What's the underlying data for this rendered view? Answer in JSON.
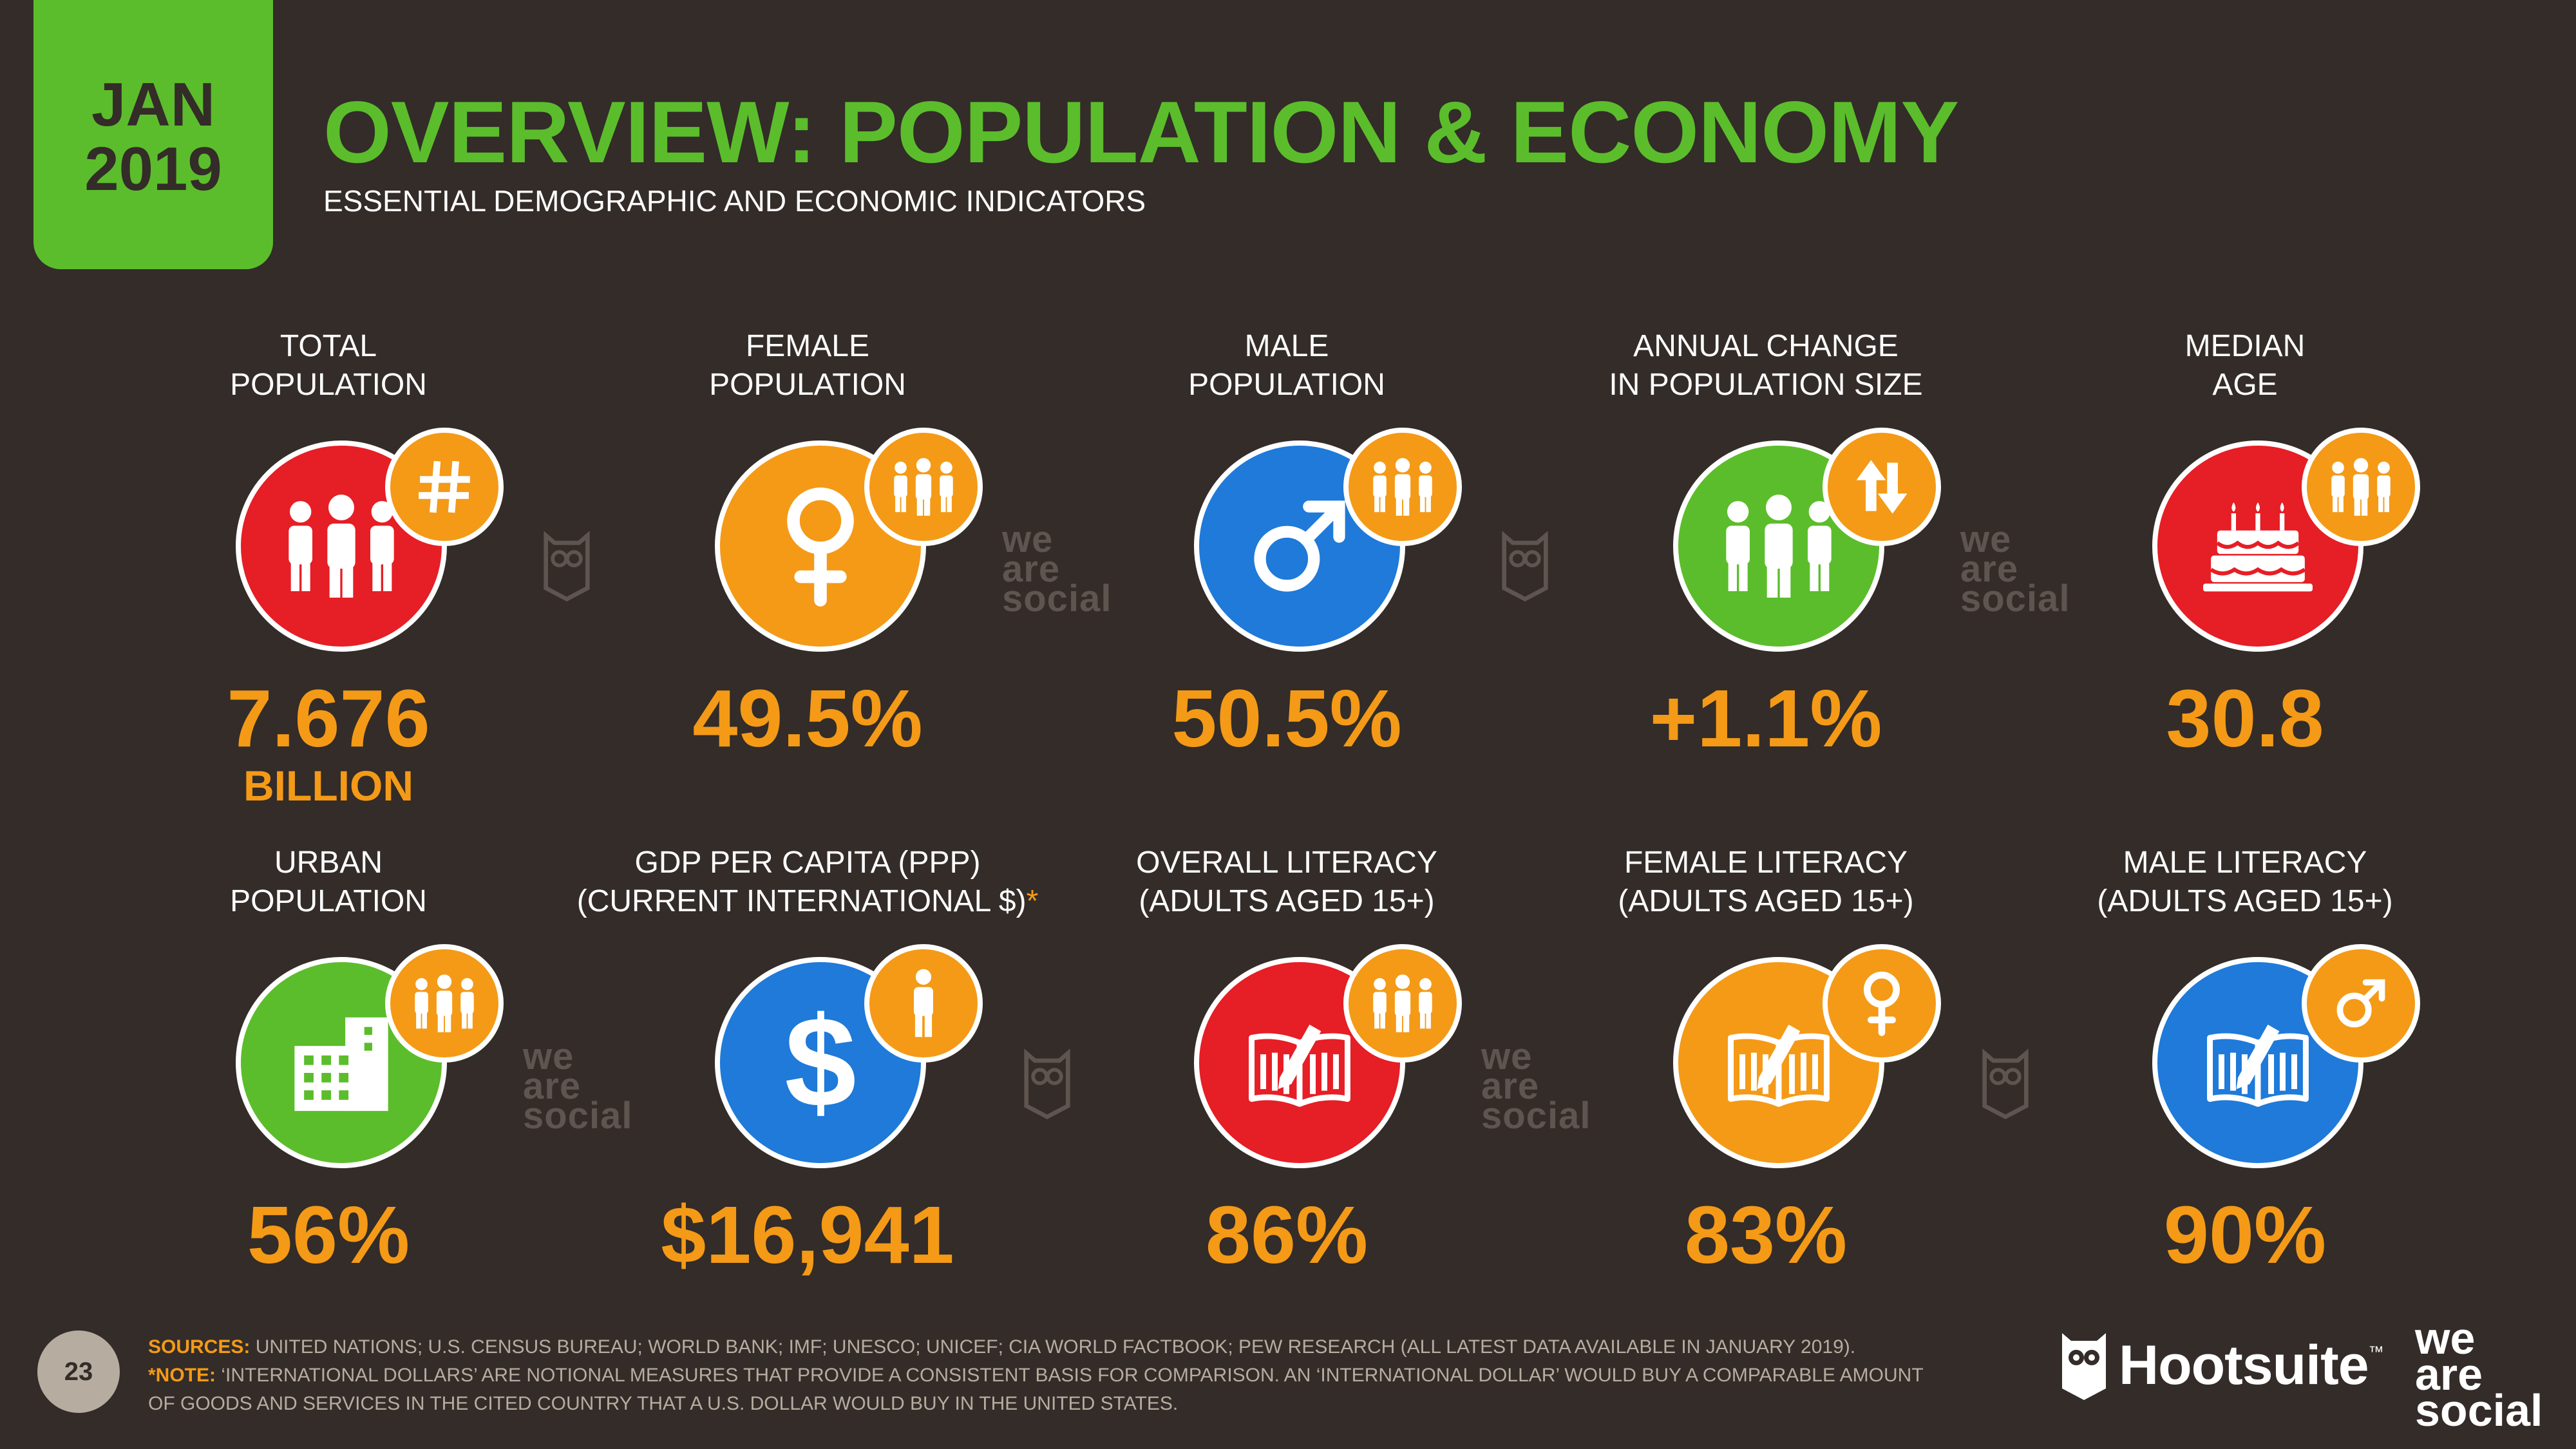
{
  "badge": {
    "month": "JAN",
    "year": "2019"
  },
  "header": {
    "title": "OVERVIEW: POPULATION & ECONOMY",
    "subtitle": "ESSENTIAL DEMOGRAPHIC AND ECONOMIC INDICATORS"
  },
  "row1": [
    {
      "label1": "TOTAL",
      "label2": "POPULATION",
      "value": "7.676",
      "unit": "BILLION",
      "icon": "people-icon",
      "badge_icon": "hash-icon",
      "color": "#e61e25"
    },
    {
      "label1": "FEMALE",
      "label2": "POPULATION",
      "value": "49.5%",
      "icon": "female-symbol-icon",
      "badge_icon": "people-icon",
      "color": "#f49a17"
    },
    {
      "label1": "MALE",
      "label2": "POPULATION",
      "value": "50.5%",
      "icon": "male-symbol-icon",
      "badge_icon": "people-icon",
      "color": "#1f7ad9"
    },
    {
      "label1": "ANNUAL CHANGE",
      "label2": "IN POPULATION SIZE",
      "value": "+1.1%",
      "icon": "people-icon",
      "badge_icon": "up-down-arrows-icon",
      "color": "#5bbd2b"
    },
    {
      "label1": "MEDIAN",
      "label2": "AGE",
      "value": "30.8",
      "icon": "birthday-cake-icon",
      "badge_icon": "people-icon",
      "color": "#e61e25"
    }
  ],
  "row2": [
    {
      "label1": "URBAN",
      "label2": "POPULATION",
      "value": "56%",
      "icon": "buildings-icon",
      "badge_icon": "people-icon",
      "color": "#5bbd2b"
    },
    {
      "label1": "GDP PER CAPITA (PPP)",
      "label2": "(CURRENT INTERNATIONAL $)",
      "star": "*",
      "value": "$16,941",
      "icon": "dollar-icon",
      "badge_icon": "person-icon",
      "color": "#1f7ad9"
    },
    {
      "label1": "OVERALL LITERACY",
      "label2": "(ADULTS AGED 15+)",
      "value": "86%",
      "icon": "book-pen-icon",
      "badge_icon": "people-icon",
      "color": "#e61e25"
    },
    {
      "label1": "FEMALE LITERACY",
      "label2": "(ADULTS AGED 15+)",
      "value": "83%",
      "icon": "book-pen-icon",
      "badge_icon": "female-symbol-icon",
      "color": "#f49a17"
    },
    {
      "label1": "MALE LITERACY",
      "label2": "(ADULTS AGED 15+)",
      "value": "90%",
      "icon": "book-pen-icon",
      "badge_icon": "male-symbol-icon",
      "color": "#1f7ad9"
    }
  ],
  "watermark": {
    "line1": "we",
    "line2": "are",
    "line3": "social"
  },
  "footer": {
    "page_number": "23",
    "sources_label": "SOURCES:",
    "sources_text": "UNITED NATIONS; U.S. CENSUS BUREAU; WORLD BANK; IMF; UNESCO; UNICEF; CIA WORLD FACTBOOK; PEW RESEARCH (ALL LATEST DATA AVAILABLE IN JANUARY 2019).",
    "note_label": "*NOTE:",
    "note_text": "‘INTERNATIONAL DOLLARS’ ARE NOTIONAL MEASURES THAT PROVIDE A CONSISTENT BASIS FOR COMPARISON. AN ‘INTERNATIONAL DOLLAR’ WOULD BUY A COMPARABLE AMOUNT OF GOODS AND SERVICES IN THE CITED COUNTRY THAT A U.S. DOLLAR WOULD BUY IN THE UNITED STATES."
  },
  "brand": {
    "hootsuite": "Hootsuite",
    "tm": "™",
    "was_line1": "we",
    "was_line2": "are",
    "was_line3": "social"
  }
}
